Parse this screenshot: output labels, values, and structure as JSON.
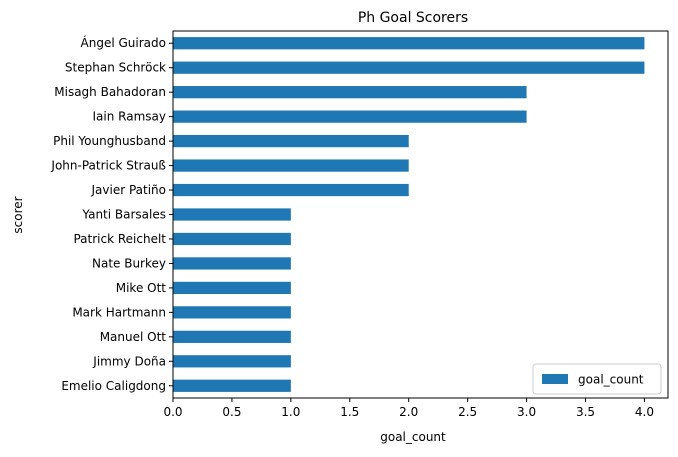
{
  "chart_data": {
    "type": "bar",
    "orientation": "horizontal",
    "title": "Ph Goal Scorers",
    "xlabel": "goal_count",
    "ylabel": "scorer",
    "xlim": [
      0,
      4.2
    ],
    "xticks": [
      "0.0",
      "0.5",
      "1.0",
      "1.5",
      "2.0",
      "2.5",
      "3.0",
      "3.5",
      "4.0"
    ],
    "grid": false,
    "legend_position": "lower-right",
    "categories": [
      "Ángel Guirado",
      "Stephan Schröck",
      "Misagh Bahadoran",
      "Iain Ramsay",
      "Phil Younghusband",
      "John-Patrick Strauß",
      "Javier Patiño",
      "Yanti Barsales",
      "Patrick Reichelt",
      "Nate Burkey",
      "Mike Ott",
      "Mark Hartmann",
      "Manuel Ott",
      "Jimmy Doña",
      "Emelio Caligdong"
    ],
    "series": [
      {
        "name": "goal_count",
        "color": "#1f77b4",
        "values": [
          4,
          4,
          3,
          3,
          2,
          2,
          2,
          1,
          1,
          1,
          1,
          1,
          1,
          1,
          1
        ]
      }
    ]
  }
}
